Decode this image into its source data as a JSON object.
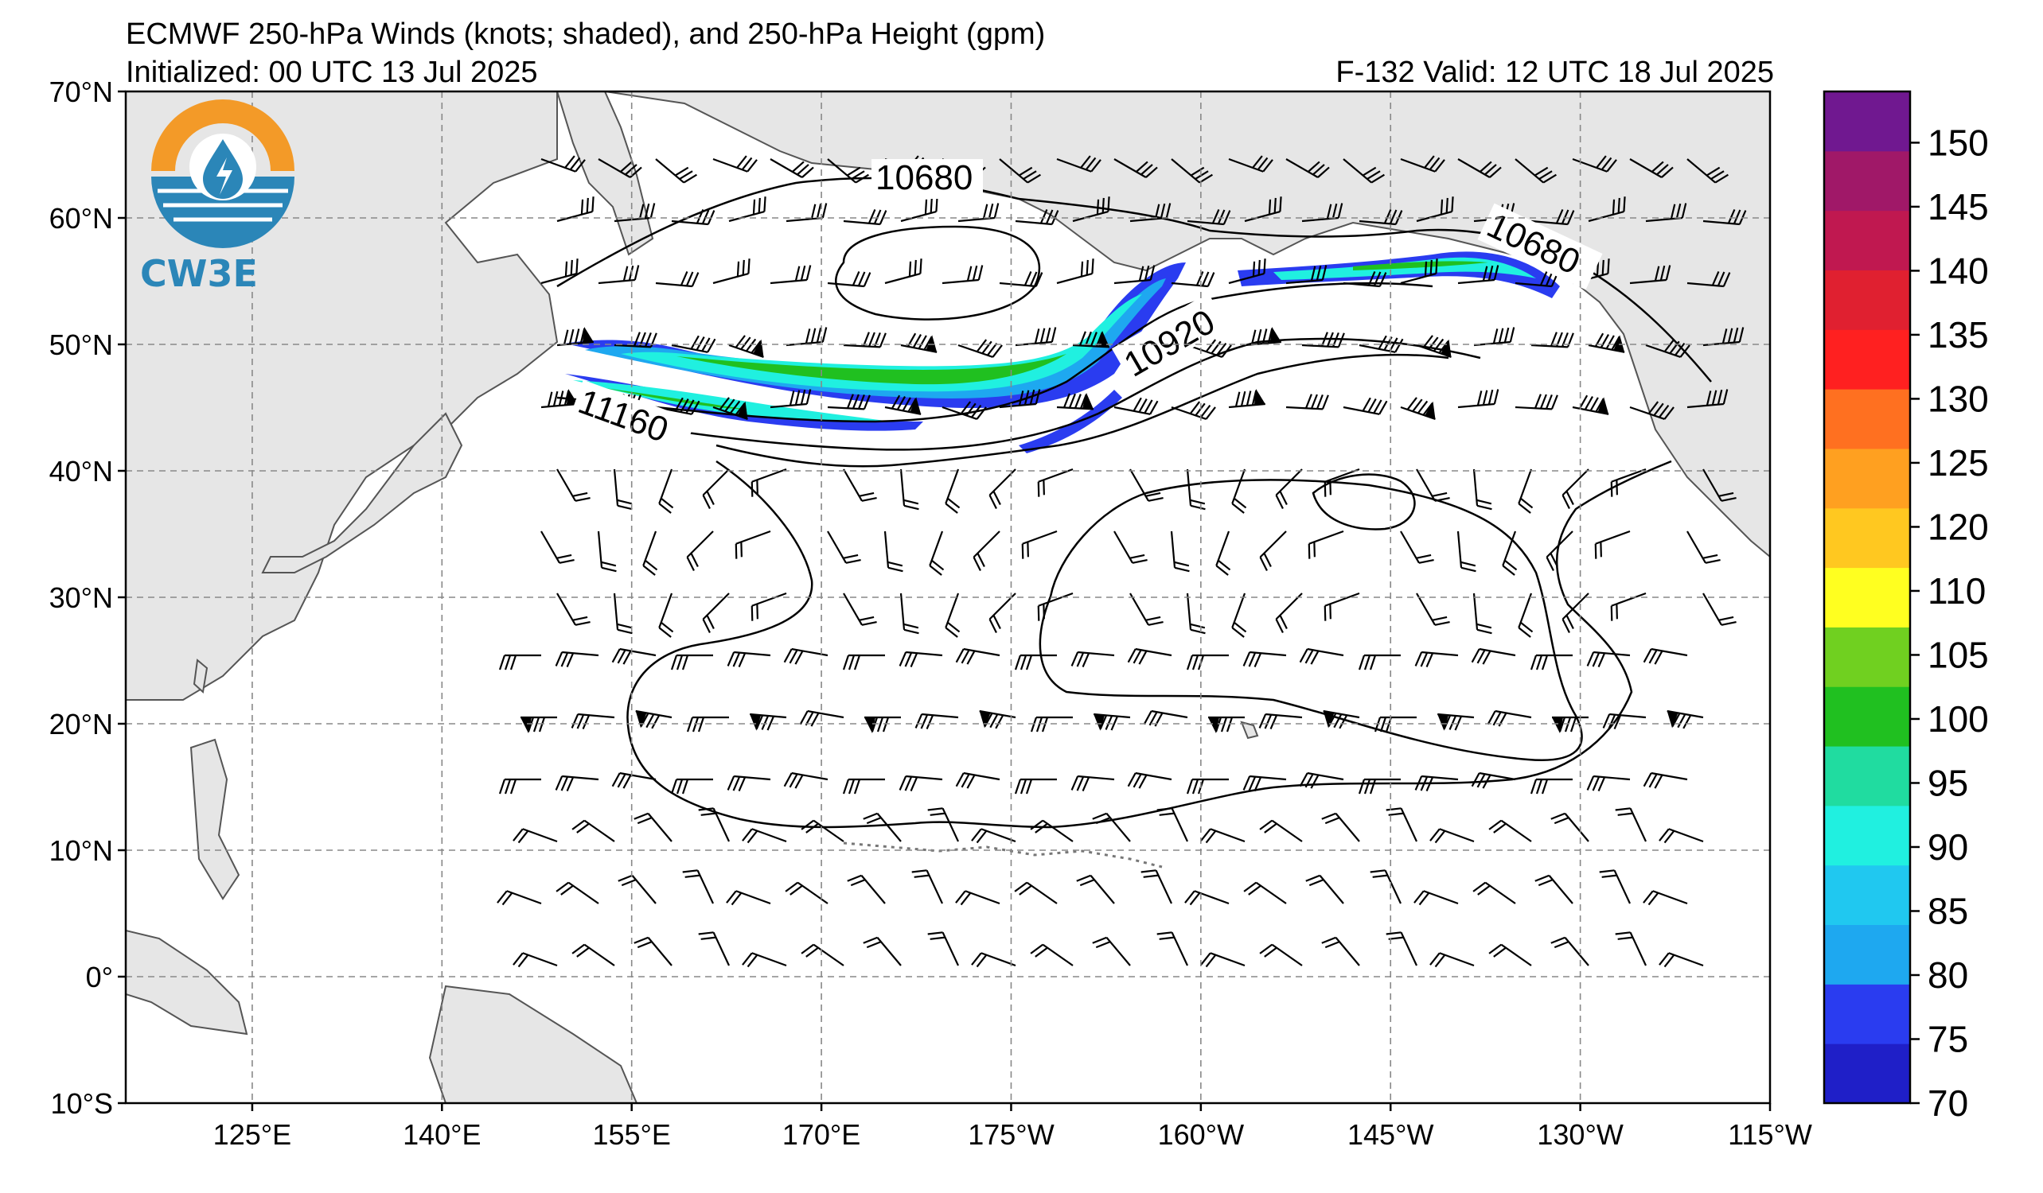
{
  "header": {
    "title": "ECMWF 250-hPa Winds (knots; shaded), and 250-hPa Height (gpm)",
    "initialized": "Initialized: 00 UTC 13 Jul 2025",
    "valid": "F-132  Valid: 12 UTC 18 Jul 2025"
  },
  "logo": {
    "text": "CW3E",
    "colors": {
      "orange": "#f39a28",
      "blue": "#2b86b8"
    }
  },
  "axes": {
    "lat_labels": [
      "70°N",
      "60°N",
      "50°N",
      "40°N",
      "30°N",
      "20°N",
      "10°N",
      "0°",
      "10°S"
    ],
    "lat_values": [
      70,
      60,
      50,
      40,
      30,
      20,
      10,
      0,
      -10
    ],
    "lon_labels": [
      "125°E",
      "140°E",
      "155°E",
      "170°E",
      "175°W",
      "160°W",
      "145°W",
      "130°W",
      "115°W"
    ],
    "lon_values": [
      125,
      140,
      155,
      170,
      185,
      200,
      215,
      230,
      245
    ],
    "lon_range": [
      115,
      245
    ],
    "lat_range": [
      -10,
      70
    ]
  },
  "contours": {
    "labels": [
      "10680",
      "10920",
      "11160",
      "10680"
    ]
  },
  "colorbar": {
    "ticks": [
      "70",
      "75",
      "80",
      "85",
      "90",
      "95",
      "100",
      "105",
      "110",
      "120",
      "125",
      "130",
      "135",
      "140",
      "145",
      "150"
    ],
    "colors": [
      "#1f1fc8",
      "#2a3cf0",
      "#1ea8f0",
      "#20c8f0",
      "#20f0e0",
      "#20dca0",
      "#20c020",
      "#70d020",
      "#ffff20",
      "#ffc820",
      "#ffa020",
      "#ff7020",
      "#ff2020",
      "#e02030",
      "#c01850",
      "#a01868",
      "#701890"
    ]
  }
}
